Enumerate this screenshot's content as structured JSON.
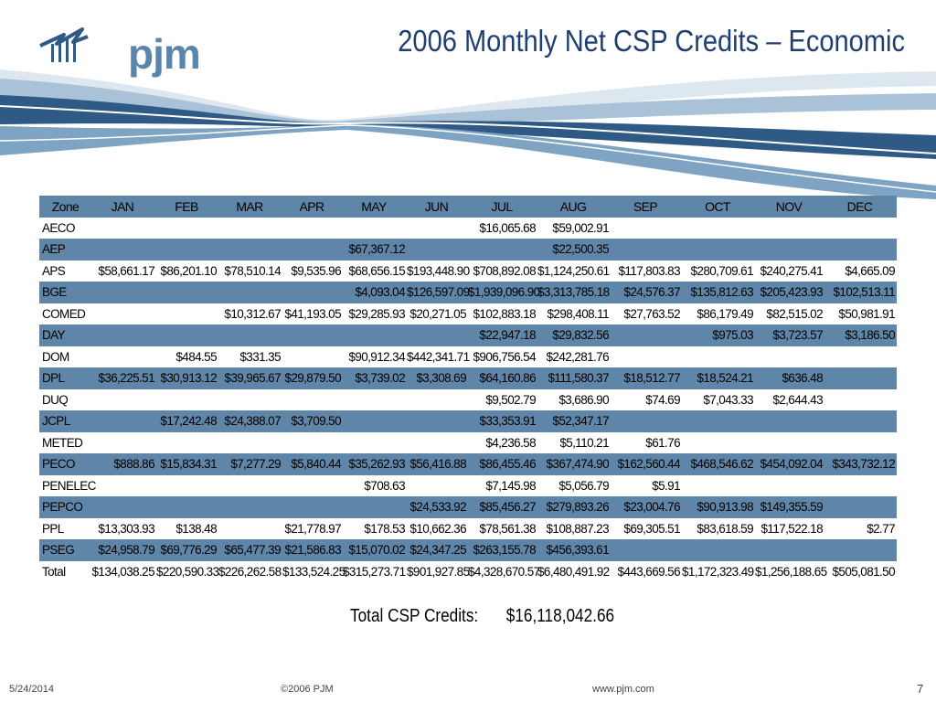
{
  "brand": {
    "logo_text": "pjm",
    "logo_icon": "tower-lightning-icon"
  },
  "title": "2006 Monthly Net CSP Credits – Economic",
  "table": {
    "columns": [
      "Zone",
      "JAN",
      "FEB",
      "MAR",
      "APR",
      "MAY",
      "JUN",
      "JUL",
      "AUG",
      "SEP",
      "OCT",
      "NOV",
      "DEC"
    ],
    "rows": [
      [
        "AECO",
        "",
        "",
        "",
        "",
        "",
        "",
        "$16,065.68",
        "$59,002.91",
        "",
        "",
        "",
        ""
      ],
      [
        "AEP",
        "",
        "",
        "",
        "",
        "$67,367.12",
        "",
        "",
        "$22,500.35",
        "",
        "",
        "",
        ""
      ],
      [
        "APS",
        "$58,661.17",
        "$86,201.10",
        "$78,510.14",
        "$9,535.96",
        "$68,656.15",
        "$193,448.90",
        "$708,892.08",
        "$1,124,250.61",
        "$117,803.83",
        "$280,709.61",
        "$240,275.41",
        "$4,665.09"
      ],
      [
        "BGE",
        "",
        "",
        "",
        "",
        "$4,093.04",
        "$126,597.09",
        "$1,939,096.90",
        "$3,313,785.18",
        "$24,576.37",
        "$135,812.63",
        "$205,423.93",
        "$102,513.11"
      ],
      [
        "COMED",
        "",
        "",
        "$10,312.67",
        "$41,193.05",
        "$29,285.93",
        "$20,271.05",
        "$102,883.18",
        "$298,408.11",
        "$27,763.52",
        "$86,179.49",
        "$82,515.02",
        "$50,981.91"
      ],
      [
        "DAY",
        "",
        "",
        "",
        "",
        "",
        "",
        "$22,947.18",
        "$29,832.56",
        "",
        "$975.03",
        "$3,723.57",
        "$3,186.50"
      ],
      [
        "DOM",
        "",
        "$484.55",
        "$331.35",
        "",
        "$90,912.34",
        "$442,341.71",
        "$906,756.54",
        "$242,281.76",
        "",
        "",
        "",
        ""
      ],
      [
        "DPL",
        "$36,225.51",
        "$30,913.12",
        "$39,965.67",
        "$29,879.50",
        "$3,739.02",
        "$3,308.69",
        "$64,160.86",
        "$111,580.37",
        "$18,512.77",
        "$18,524.21",
        "$636.48",
        ""
      ],
      [
        "DUQ",
        "",
        "",
        "",
        "",
        "",
        "",
        "$9,502.79",
        "$3,686.90",
        "$74.69",
        "$7,043.33",
        "$2,644.43",
        ""
      ],
      [
        "JCPL",
        "",
        "$17,242.48",
        "$24,388.07",
        "$3,709.50",
        "",
        "",
        "$33,353.91",
        "$52,347.17",
        "",
        "",
        "",
        ""
      ],
      [
        "METED",
        "",
        "",
        "",
        "",
        "",
        "",
        "$4,236.58",
        "$5,110.21",
        "$61.76",
        "",
        "",
        ""
      ],
      [
        "PECO",
        "$888.86",
        "$15,834.31",
        "$7,277.29",
        "$5,840.44",
        "$35,262.93",
        "$56,416.88",
        "$86,455.46",
        "$367,474.90",
        "$162,560.44",
        "$468,546.62",
        "$454,092.04",
        "$343,732.12"
      ],
      [
        "PENELEC",
        "",
        "",
        "",
        "",
        "$708.63",
        "",
        "$7,145.98",
        "$5,056.79",
        "$5.91",
        "",
        "",
        ""
      ],
      [
        "PEPCO",
        "",
        "",
        "",
        "",
        "",
        "$24,533.92",
        "$85,456.27",
        "$279,893.26",
        "$23,004.76",
        "$90,913.98",
        "$149,355.59",
        ""
      ],
      [
        "PPL",
        "$13,303.93",
        "$138.48",
        "",
        "$21,778.97",
        "$178.53",
        "$10,662.36",
        "$78,561.38",
        "$108,887.23",
        "$69,305.51",
        "$83,618.59",
        "$117,522.18",
        "$2.77"
      ],
      [
        "PSEG",
        "$24,958.79",
        "$69,776.29",
        "$65,477.39",
        "$21,586.83",
        "$15,070.02",
        "$24,347.25",
        "$263,155.78",
        "$456,393.61",
        "",
        "",
        "",
        ""
      ],
      [
        "Total",
        "$134,038.25",
        "$220,590.33",
        "$226,262.58",
        "$133,524.25",
        "$315,273.71",
        "$901,927.85",
        "$4,328,670.57",
        "$6,480,491.92",
        "$443,669.56",
        "$1,172,323.49",
        "$1,256,188.65",
        "$505,081.50"
      ]
    ]
  },
  "summary": {
    "label": "Total CSP Credits:",
    "value": "$16,118,042.66"
  },
  "footer": {
    "date": "5/24/2014",
    "copyright": "©2006 PJM",
    "url": "www.pjm.com",
    "page": "7"
  },
  "colors": {
    "header_blue": "#5f86a8",
    "title_blue": "#1f3f6e",
    "logo_blue": "#5a86ad"
  }
}
